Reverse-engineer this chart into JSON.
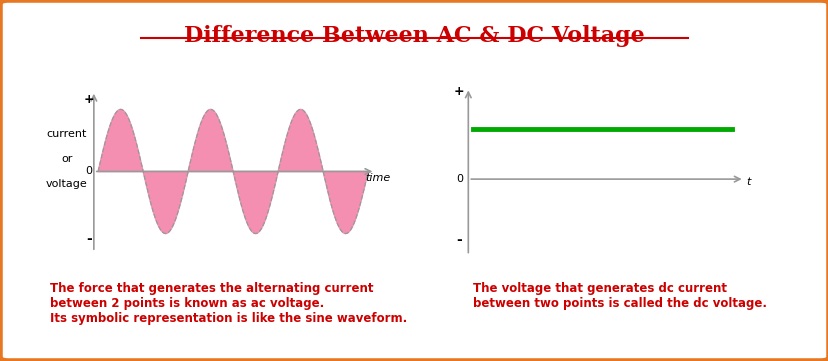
{
  "title": "Difference Between AC & DC Voltage",
  "title_color": "#cc0000",
  "title_fontsize": 16,
  "border_color": "#e87722",
  "border_linewidth": 4,
  "background_color": "#ffffff",
  "ac_ylabel_line1": "current",
  "ac_ylabel_line2": "or",
  "ac_ylabel_line3": "voltage",
  "ac_plus_label": "+",
  "ac_minus_label": "-",
  "ac_zero_label": "0",
  "ac_time_label": "time",
  "dc_plus_label": "+",
  "dc_minus_label": "-",
  "dc_zero_label": "0",
  "dc_t_label": "t",
  "ac_sine_color": "#f48fb1",
  "ac_sine_border_color": "#999999",
  "dc_line_color": "#00aa00",
  "axis_color": "#999999",
  "text_color": "#cc0000",
  "ac_description": "The force that generates the alternating current\nbetween 2 points is known as ac voltage.\nIts symbolic representation is like the sine waveform.",
  "dc_description": "The voltage that generates dc current\nbetween two points is called the dc voltage.",
  "font_size_labels": 8,
  "font_size_desc": 8.5
}
